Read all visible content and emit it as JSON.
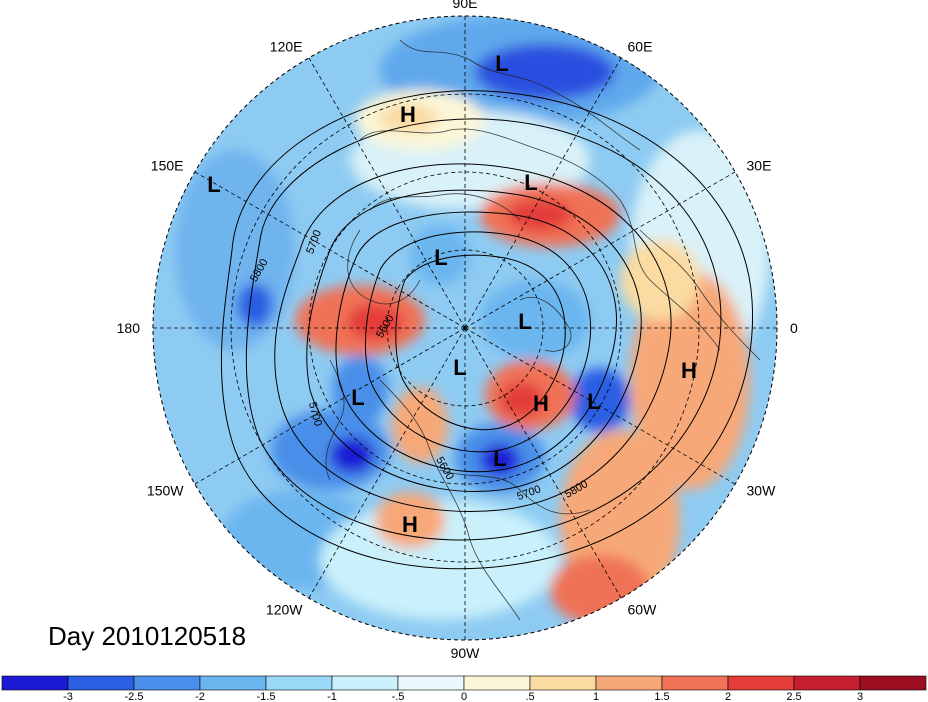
{
  "title": "Day 2010120518",
  "longitude_labels": [
    {
      "text": "90E",
      "angle": 90
    },
    {
      "text": "60E",
      "angle": 60
    },
    {
      "text": "30E",
      "angle": 30
    },
    {
      "text": "0",
      "angle": 0
    },
    {
      "text": "30W",
      "angle": -30
    },
    {
      "text": "60W",
      "angle": -60
    },
    {
      "text": "90W",
      "angle": -90
    },
    {
      "text": "120W",
      "angle": -120
    },
    {
      "text": "150W",
      "angle": -150
    },
    {
      "text": "180",
      "angle": 180
    },
    {
      "text": "150E",
      "angle": 150
    },
    {
      "text": "120E",
      "angle": 120
    }
  ],
  "pressure_centers": [
    {
      "type": "L",
      "pos": [
        502,
        63
      ]
    },
    {
      "type": "H",
      "pos": [
        408,
        114
      ]
    },
    {
      "type": "L",
      "pos": [
        214,
        184
      ]
    },
    {
      "type": "L",
      "pos": [
        531,
        182
      ]
    },
    {
      "type": "L",
      "pos": [
        441,
        257
      ]
    },
    {
      "type": "L",
      "pos": [
        525,
        321
      ]
    },
    {
      "type": "L",
      "pos": [
        460,
        367
      ]
    },
    {
      "type": "H",
      "pos": [
        689,
        370
      ]
    },
    {
      "type": "L",
      "pos": [
        358,
        397
      ]
    },
    {
      "type": "H",
      "pos": [
        541,
        403
      ]
    },
    {
      "type": "L",
      "pos": [
        594,
        401
      ]
    },
    {
      "type": "L",
      "pos": [
        500,
        458
      ]
    },
    {
      "type": "H",
      "pos": [
        410,
        524
      ]
    }
  ],
  "contour_labels": [
    {
      "text": "5700",
      "pos": [
        317,
        243
      ],
      "rot": -70
    },
    {
      "text": "5800",
      "pos": [
        262,
        272
      ],
      "rot": -60
    },
    {
      "text": "5700",
      "pos": [
        312,
        415
      ],
      "rot": 75
    },
    {
      "text": "5600",
      "pos": [
        442,
        470
      ],
      "rot": 60
    },
    {
      "text": "5700",
      "pos": [
        530,
        496
      ],
      "rot": -20
    },
    {
      "text": "5800",
      "pos": [
        578,
        492
      ],
      "rot": -30
    },
    {
      "text": "5600",
      "pos": [
        388,
        328
      ],
      "rot": -60
    }
  ],
  "colorbar": {
    "ticks": [
      "-3",
      "-2.5",
      "-2",
      "-1.5",
      "-1",
      "-.5",
      "0",
      ".5",
      "1",
      "1.5",
      "2",
      "2.5",
      "3"
    ],
    "colors": [
      "#1d1ad6",
      "#2b5fe4",
      "#4a8fe9",
      "#6cb6f0",
      "#9ad8f7",
      "#c9f0fb",
      "#eaf9fc",
      "#fcf6d8",
      "#fbdba2",
      "#f7a878",
      "#f07257",
      "#e43d3a",
      "#c61f2f",
      "#9c0f22"
    ]
  }
}
